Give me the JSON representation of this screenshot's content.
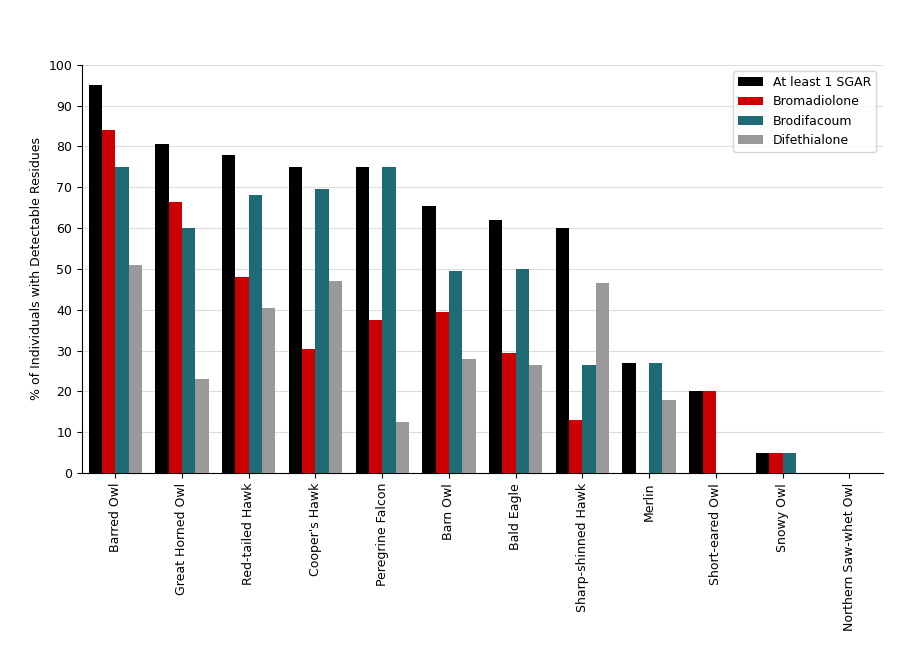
{
  "chart_data": {
    "type": "bar",
    "y_label": "% of Individuals with Detectable Residues",
    "categories": [
      "Barred Owl",
      "Great Horned Owl",
      "Red-tailed Hawk",
      "Cooper's Hawk",
      "Peregrine Falcon",
      "Barn Owl",
      "Bald Eagle",
      "Sharp-shinned Hawk",
      "Merlin",
      "Short-eared Owl",
      "Snowy Owl",
      "Northern Saw-whet Owl"
    ],
    "series": [
      {
        "name": "At least 1 SGAR",
        "color": "#000000",
        "values": [
          95,
          80.5,
          78,
          75,
          75,
          65.5,
          62,
          60,
          27,
          20,
          5,
          0
        ]
      },
      {
        "name": "Bromadiolone",
        "color": "#cc0000",
        "values": [
          84,
          66.5,
          48,
          30.5,
          37.5,
          39.5,
          29.5,
          13,
          0,
          20,
          5,
          0
        ]
      },
      {
        "name": "Brodifacoum",
        "color": "#1f6b75",
        "values": [
          75,
          60,
          68,
          69.5,
          75,
          49.5,
          50,
          26.5,
          27,
          0,
          5,
          0
        ]
      },
      {
        "name": "Difethialone",
        "color": "#999999",
        "values": [
          51,
          23,
          40.5,
          47,
          12.5,
          28,
          26.5,
          46.5,
          18,
          0,
          0,
          0
        ]
      }
    ],
    "ylim": [
      0,
      100
    ],
    "yticks": [
      0,
      10,
      20,
      30,
      40,
      50,
      60,
      70,
      80,
      90,
      100
    ],
    "grid": true,
    "legend": "upper right"
  }
}
